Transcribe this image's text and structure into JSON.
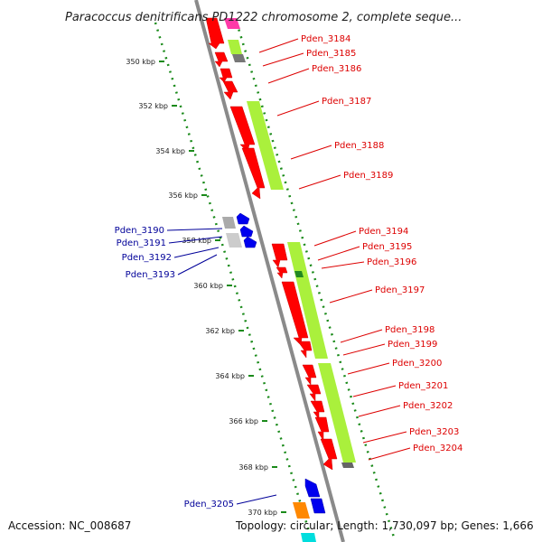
{
  "title": "Paracoccus denitrificans PD1222 chromosome 2, complete seque...",
  "accession": "Accession: NC_008687",
  "topology": "Topology: circular; Length: 1,730,097 bp; Genes: 1,666",
  "ticks": [
    "350 kbp",
    "352 kbp",
    "354 kbp",
    "356 kbp",
    "358 kbp",
    "360 kbp",
    "362 kbp",
    "364 kbp",
    "366 kbp",
    "368 kbp",
    "370 kbp"
  ],
  "labels_forward": [
    "Pden_3184",
    "Pden_3185",
    "Pden_3186",
    "Pden_3187",
    "Pden_3188",
    "Pden_3189",
    "Pden_3194",
    "Pden_3195",
    "Pden_3196",
    "Pden_3197",
    "Pden_3198",
    "Pden_3199",
    "Pden_3200",
    "Pden_3201",
    "Pden_3202",
    "Pden_3203",
    "Pden_3204"
  ],
  "labels_reverse": [
    "Pden_3190",
    "Pden_3191",
    "Pden_3192",
    "Pden_3193",
    "Pden_3205"
  ],
  "colors": {
    "backbone": "#8a8a8a",
    "tick": "#1a8a1a",
    "forward_gene": "#ff0000",
    "reverse_gene": "#0000ee",
    "cog_green": "#aaf03c",
    "label_forward": "#dd0000",
    "label_reverse": "#000099"
  }
}
